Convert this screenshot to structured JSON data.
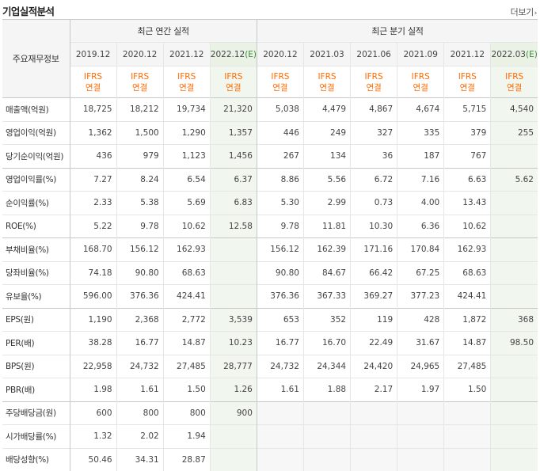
{
  "header": {
    "title": "기업실적분석",
    "more_label": "더보기",
    "more_arrow": "›"
  },
  "table": {
    "row_head": "주요재무정보",
    "group_annual": "최근 연간 실적",
    "group_quarter": "최근 분기 실적",
    "annual_periods": [
      "2019.12",
      "2020.12",
      "2021.12",
      "2022.12"
    ],
    "annual_estimate_suffix": "(E)",
    "quarter_periods": [
      "2020.12",
      "2021.03",
      "2021.06",
      "2021.09",
      "2021.12",
      "2022.03"
    ],
    "quarter_estimate_suffix": "(E)",
    "std_line1": "IFRS",
    "std_line2": "연결",
    "rows": [
      {
        "label": "매출액(억원)",
        "values": [
          "18,725",
          "18,212",
          "19,734",
          "21,320",
          "5,038",
          "4,479",
          "4,867",
          "4,674",
          "5,715",
          "4,540"
        ]
      },
      {
        "label": "영업이익(억원)",
        "values": [
          "1,362",
          "1,500",
          "1,290",
          "1,357",
          "446",
          "249",
          "327",
          "335",
          "379",
          "255"
        ]
      },
      {
        "label": "당기순이익(억원)",
        "values": [
          "436",
          "979",
          "1,123",
          "1,456",
          "267",
          "134",
          "36",
          "187",
          "767",
          ""
        ]
      },
      {
        "label": "영업이익률(%)",
        "values": [
          "7.27",
          "8.24",
          "6.54",
          "6.37",
          "8.86",
          "5.56",
          "6.72",
          "7.16",
          "6.63",
          "5.62"
        ]
      },
      {
        "label": "순이익률(%)",
        "values": [
          "2.33",
          "5.38",
          "5.69",
          "6.83",
          "5.30",
          "2.99",
          "0.73",
          "4.00",
          "13.43",
          ""
        ]
      },
      {
        "label": "ROE(%)",
        "values": [
          "5.22",
          "9.78",
          "10.62",
          "12.58",
          "9.78",
          "11.81",
          "10.30",
          "6.36",
          "10.62",
          ""
        ]
      },
      {
        "label": "부채비율(%)",
        "values": [
          "168.70",
          "156.12",
          "162.93",
          "",
          "156.12",
          "162.39",
          "171.16",
          "170.84",
          "162.93",
          ""
        ]
      },
      {
        "label": "당좌비율(%)",
        "values": [
          "74.18",
          "90.80",
          "68.63",
          "",
          "90.80",
          "84.67",
          "66.42",
          "67.25",
          "68.63",
          ""
        ]
      },
      {
        "label": "유보율(%)",
        "values": [
          "596.00",
          "376.36",
          "424.41",
          "",
          "376.36",
          "367.33",
          "369.27",
          "377.23",
          "424.41",
          ""
        ]
      },
      {
        "label": "EPS(원)",
        "values": [
          "1,190",
          "2,368",
          "2,772",
          "3,539",
          "653",
          "352",
          "119",
          "428",
          "1,872",
          "368"
        ]
      },
      {
        "label": "PER(배)",
        "values": [
          "38.28",
          "16.77",
          "14.87",
          "10.23",
          "16.77",
          "16.70",
          "22.49",
          "31.67",
          "14.87",
          "98.50"
        ]
      },
      {
        "label": "BPS(원)",
        "values": [
          "22,958",
          "24,732",
          "27,485",
          "28,777",
          "24,732",
          "24,344",
          "24,420",
          "24,965",
          "27,485",
          ""
        ]
      },
      {
        "label": "PBR(배)",
        "values": [
          "1.98",
          "1.61",
          "1.50",
          "1.26",
          "1.61",
          "1.88",
          "2.17",
          "1.97",
          "1.50",
          ""
        ]
      },
      {
        "label": "주당배당금(원)",
        "values": [
          "600",
          "800",
          "800",
          "900",
          "",
          "",
          "",
          "",
          "",
          ""
        ]
      },
      {
        "label": "시가배당률(%)",
        "values": [
          "1.32",
          "2.02",
          "1.94",
          "",
          "",
          "",
          "",
          "",
          "",
          ""
        ]
      },
      {
        "label": "배당성향(%)",
        "values": [
          "50.46",
          "34.31",
          "28.87",
          "",
          "",
          "",
          "",
          "",
          "",
          ""
        ]
      }
    ]
  }
}
